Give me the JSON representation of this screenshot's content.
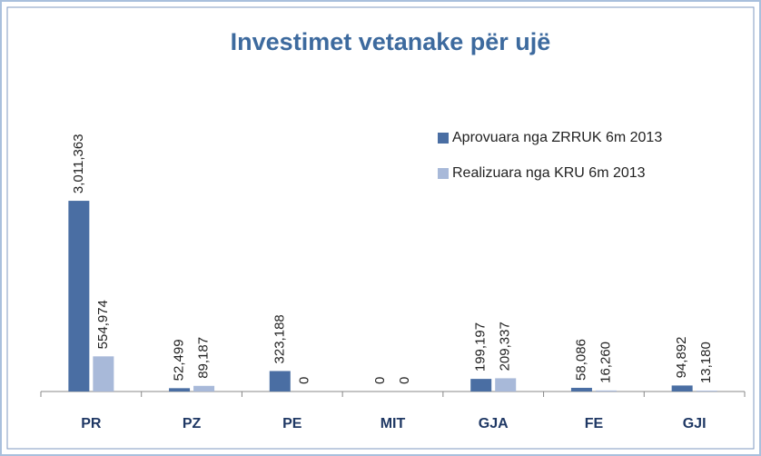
{
  "chart_data": {
    "type": "bar",
    "title": "Investimet vetanake për ujë",
    "categories": [
      "PR",
      "PZ",
      "PE",
      "MIT",
      "GJA",
      "FE",
      "GJI"
    ],
    "series": [
      {
        "name": "Aprovuara nga ZRRUK 6m 2013",
        "color": "#4a6ea3",
        "values": [
          3011363,
          52499,
          323188,
          0,
          199197,
          58086,
          94892
        ],
        "value_labels": [
          "3,011,363",
          "52,499",
          "323,188",
          "0",
          "199,197",
          "58,086",
          "94,892"
        ]
      },
      {
        "name": "Realizuara nga KRU 6m 2013",
        "color": "#a8b9d9",
        "values": [
          554974,
          89187,
          0,
          0,
          209337,
          16260,
          13180
        ],
        "value_labels": [
          "554,974",
          "89,187",
          "0",
          "0",
          "209,337",
          "16,260",
          "13,180"
        ]
      }
    ],
    "ylim": [
      0,
      3500000
    ],
    "legend": "upper right"
  }
}
